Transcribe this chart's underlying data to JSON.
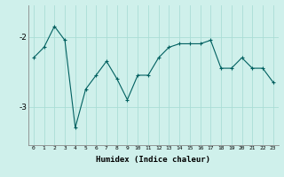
{
  "x": [
    0,
    1,
    2,
    3,
    4,
    5,
    6,
    7,
    8,
    9,
    10,
    11,
    12,
    13,
    14,
    15,
    16,
    17,
    18,
    19,
    20,
    21,
    22,
    23
  ],
  "y": [
    -2.3,
    -2.15,
    -1.85,
    -2.05,
    -3.3,
    -2.75,
    -2.55,
    -2.35,
    -2.6,
    -2.9,
    -2.55,
    -2.55,
    -2.3,
    -2.15,
    -2.1,
    -2.1,
    -2.1,
    -2.05,
    -2.45,
    -2.45,
    -2.3,
    -2.45,
    -2.45,
    -2.65
  ],
  "line_color": "#006060",
  "marker": "+",
  "marker_size": 3,
  "bg_color": "#cff0eb",
  "grid_color": "#aaddd6",
  "xlabel": "Humidex (Indice chaleur)",
  "yticks": [
    -3,
    -2
  ],
  "ylim": [
    -3.55,
    -1.55
  ],
  "xlim": [
    -0.5,
    23.5
  ]
}
